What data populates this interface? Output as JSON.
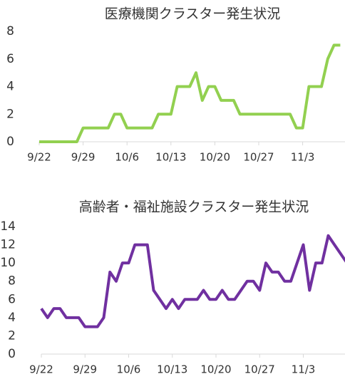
{
  "chart_data": [
    {
      "type": "line",
      "title": "医療機関クラスター発生状況",
      "categories": [
        "9/22",
        null,
        null,
        null,
        null,
        null,
        null,
        "9/29",
        null,
        null,
        null,
        null,
        null,
        null,
        "10/6",
        null,
        null,
        null,
        null,
        null,
        null,
        "10/13",
        null,
        null,
        null,
        null,
        null,
        null,
        "10/20",
        null,
        null,
        null,
        null,
        null,
        null,
        "10/27",
        null,
        null,
        null,
        null,
        null,
        null,
        "11/3",
        null,
        null,
        null,
        null,
        null,
        null
      ],
      "series": [
        {
          "name": null,
          "color": "#92d050",
          "values": [
            0,
            0,
            0,
            0,
            0,
            0,
            0,
            1,
            1,
            1,
            1,
            1,
            2,
            2,
            1,
            1,
            1,
            1,
            1,
            2,
            2,
            2,
            4,
            4,
            4,
            5,
            3,
            4,
            4,
            3,
            3,
            3,
            2,
            2,
            2,
            2,
            2,
            2,
            2,
            2,
            2,
            1,
            1,
            4,
            4,
            4,
            6,
            7,
            7
          ]
        }
      ],
      "ylim": [
        0,
        8
      ],
      "yticks": [
        0,
        2,
        4,
        6,
        8
      ],
      "grid": false
    },
    {
      "type": "line",
      "title": "高齢者・福祉施設クラスター発生状況",
      "categories": [
        "9/22",
        null,
        null,
        null,
        null,
        null,
        null,
        "9/29",
        null,
        null,
        null,
        null,
        null,
        null,
        "10/6",
        null,
        null,
        null,
        null,
        null,
        null,
        "10/13",
        null,
        null,
        null,
        null,
        null,
        null,
        "10/20",
        null,
        null,
        null,
        null,
        null,
        null,
        "10/27",
        null,
        null,
        null,
        null,
        null,
        null,
        "11/3",
        null,
        null,
        null,
        null,
        null,
        null,
        null
      ],
      "series": [
        {
          "name": null,
          "color": "#7030a0",
          "values": [
            5,
            4,
            5,
            5,
            4,
            4,
            4,
            3,
            3,
            3,
            4,
            9,
            8,
            10,
            10,
            12,
            12,
            12,
            7,
            6,
            5,
            6,
            5,
            6,
            6,
            6,
            7,
            6,
            6,
            7,
            6,
            6,
            7,
            8,
            8,
            7,
            10,
            9,
            9,
            8,
            8,
            10,
            12,
            7,
            10,
            10,
            13,
            12,
            11,
            10
          ]
        }
      ],
      "ylim": [
        0,
        14
      ],
      "yticks": [
        0,
        2,
        4,
        6,
        8,
        10,
        12,
        14
      ],
      "grid": false
    }
  ]
}
